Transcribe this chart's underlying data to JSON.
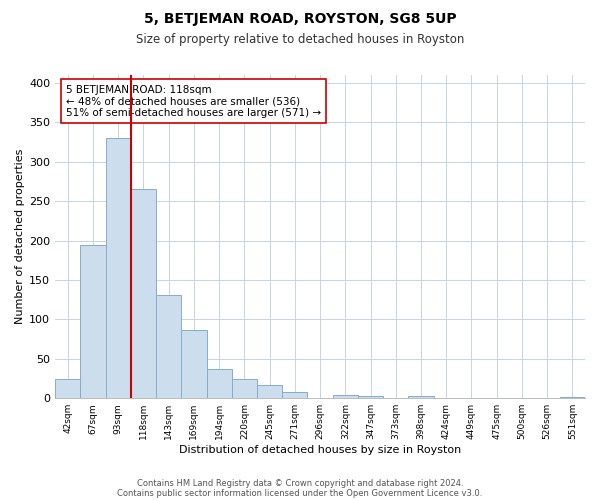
{
  "title": "5, BETJEMAN ROAD, ROYSTON, SG8 5UP",
  "subtitle": "Size of property relative to detached houses in Royston",
  "xlabel": "Distribution of detached houses by size in Royston",
  "ylabel": "Number of detached properties",
  "bar_labels": [
    "42sqm",
    "67sqm",
    "93sqm",
    "118sqm",
    "143sqm",
    "169sqm",
    "194sqm",
    "220sqm",
    "245sqm",
    "271sqm",
    "296sqm",
    "322sqm",
    "347sqm",
    "373sqm",
    "398sqm",
    "424sqm",
    "449sqm",
    "475sqm",
    "500sqm",
    "526sqm",
    "551sqm"
  ],
  "bar_values": [
    25,
    194,
    330,
    265,
    131,
    87,
    37,
    25,
    17,
    8,
    0,
    4,
    3,
    0,
    3,
    0,
    0,
    0,
    0,
    0,
    2
  ],
  "bar_color": "#ccdded",
  "bar_edge_color": "#85aecb",
  "vline_color": "#cc0000",
  "annotation_text": "5 BETJEMAN ROAD: 118sqm\n← 48% of detached houses are smaller (536)\n51% of semi-detached houses are larger (571) →",
  "annotation_box_color": "#ffffff",
  "annotation_box_edge": "#cc0000",
  "ylim": [
    0,
    410
  ],
  "yticks": [
    0,
    50,
    100,
    150,
    200,
    250,
    300,
    350,
    400
  ],
  "footer_line1": "Contains HM Land Registry data © Crown copyright and database right 2024.",
  "footer_line2": "Contains public sector information licensed under the Open Government Licence v3.0.",
  "bg_color": "#ffffff",
  "grid_color": "#c8d4e0"
}
